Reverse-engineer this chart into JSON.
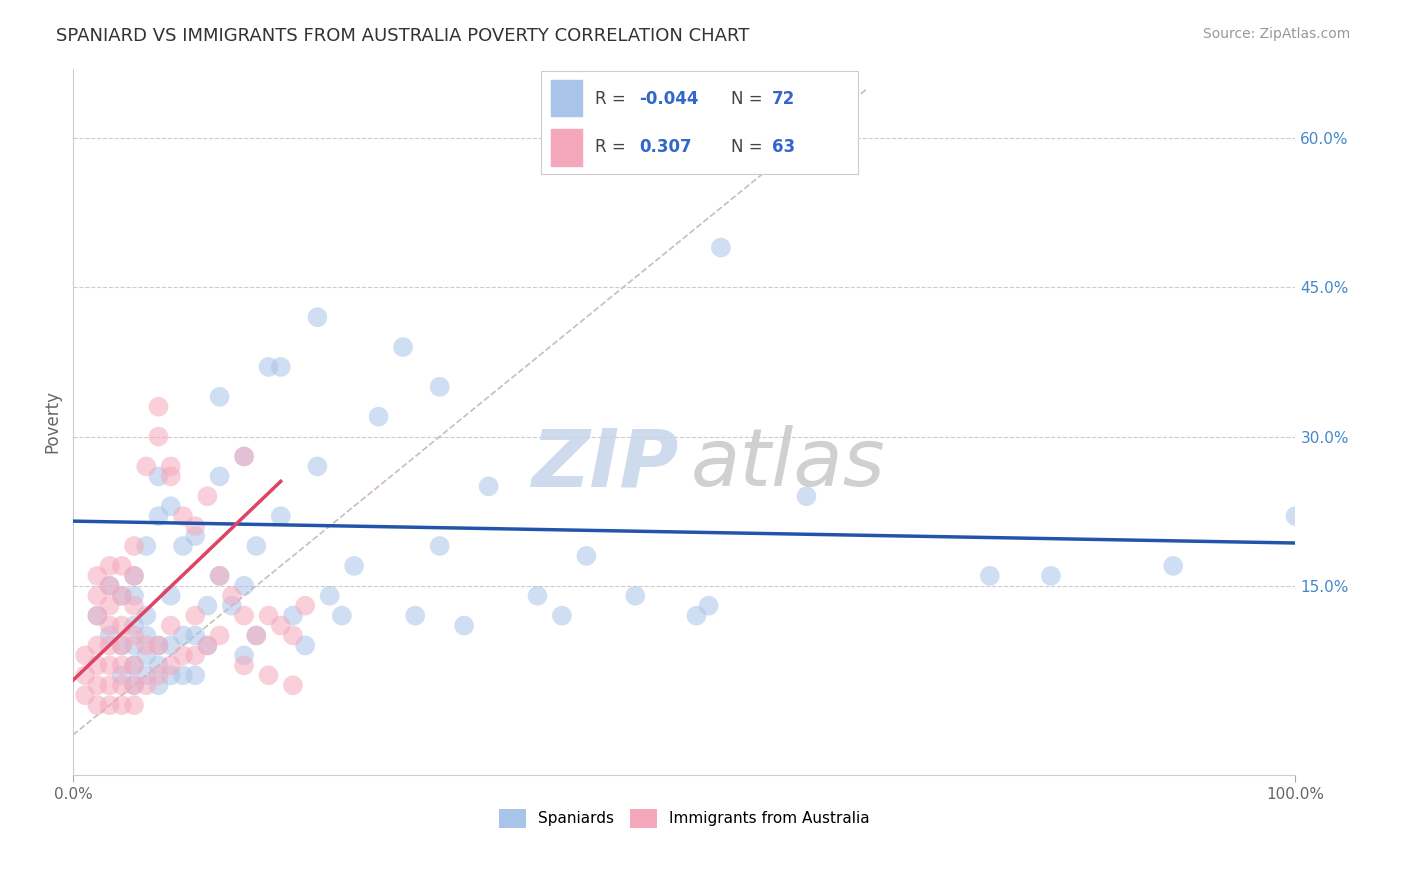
{
  "title": "SPANIARD VS IMMIGRANTS FROM AUSTRALIA POVERTY CORRELATION CHART",
  "source": "Source: ZipAtlas.com",
  "ylabel": "Poverty",
  "xlim": [
    0.0,
    1.0
  ],
  "ylim": [
    -0.04,
    0.67
  ],
  "ytick_vals": [
    0.15,
    0.3,
    0.45,
    0.6
  ],
  "ytick_labels": [
    "15.0%",
    "30.0%",
    "45.0%",
    "60.0%"
  ],
  "blue_color": "#a8c4e8",
  "pink_color": "#f5a8bc",
  "blue_line_color": "#2255aa",
  "pink_line_color": "#dd4466",
  "diag_line_color": "#ccbbbb",
  "watermark_zip_color": "#c5d5ea",
  "watermark_atlas_color": "#c8c8c8",
  "spaniards_x": [
    0.02,
    0.03,
    0.03,
    0.04,
    0.04,
    0.04,
    0.05,
    0.05,
    0.05,
    0.05,
    0.05,
    0.05,
    0.06,
    0.06,
    0.06,
    0.06,
    0.06,
    0.07,
    0.07,
    0.07,
    0.07,
    0.07,
    0.08,
    0.08,
    0.08,
    0.08,
    0.09,
    0.09,
    0.09,
    0.1,
    0.1,
    0.1,
    0.11,
    0.11,
    0.12,
    0.12,
    0.13,
    0.14,
    0.14,
    0.14,
    0.15,
    0.15,
    0.17,
    0.17,
    0.18,
    0.19,
    0.2,
    0.21,
    0.22,
    0.23,
    0.25,
    0.27,
    0.28,
    0.3,
    0.3,
    0.32,
    0.34,
    0.38,
    0.4,
    0.42,
    0.46,
    0.51,
    0.52,
    0.53,
    0.6,
    0.75,
    0.8,
    0.9,
    1.0,
    0.12,
    0.16,
    0.2
  ],
  "spaniards_y": [
    0.12,
    0.1,
    0.15,
    0.06,
    0.09,
    0.14,
    0.05,
    0.07,
    0.09,
    0.11,
    0.14,
    0.16,
    0.06,
    0.08,
    0.1,
    0.12,
    0.19,
    0.05,
    0.07,
    0.09,
    0.22,
    0.26,
    0.06,
    0.09,
    0.14,
    0.23,
    0.06,
    0.1,
    0.19,
    0.06,
    0.1,
    0.2,
    0.09,
    0.13,
    0.16,
    0.34,
    0.13,
    0.08,
    0.15,
    0.28,
    0.1,
    0.19,
    0.22,
    0.37,
    0.12,
    0.09,
    0.27,
    0.14,
    0.12,
    0.17,
    0.32,
    0.39,
    0.12,
    0.35,
    0.19,
    0.11,
    0.25,
    0.14,
    0.12,
    0.18,
    0.14,
    0.12,
    0.13,
    0.49,
    0.24,
    0.16,
    0.16,
    0.17,
    0.22,
    0.26,
    0.37,
    0.42
  ],
  "immigrants_x": [
    0.01,
    0.01,
    0.01,
    0.02,
    0.02,
    0.02,
    0.02,
    0.02,
    0.02,
    0.02,
    0.03,
    0.03,
    0.03,
    0.03,
    0.03,
    0.03,
    0.03,
    0.03,
    0.04,
    0.04,
    0.04,
    0.04,
    0.04,
    0.04,
    0.04,
    0.05,
    0.05,
    0.05,
    0.05,
    0.05,
    0.05,
    0.05,
    0.06,
    0.06,
    0.06,
    0.07,
    0.07,
    0.07,
    0.08,
    0.08,
    0.08,
    0.09,
    0.09,
    0.1,
    0.1,
    0.11,
    0.11,
    0.12,
    0.13,
    0.14,
    0.14,
    0.15,
    0.16,
    0.17,
    0.18,
    0.19,
    0.07,
    0.08,
    0.1,
    0.12,
    0.14,
    0.16,
    0.18
  ],
  "immigrants_y": [
    0.04,
    0.06,
    0.08,
    0.03,
    0.05,
    0.07,
    0.09,
    0.12,
    0.14,
    0.16,
    0.03,
    0.05,
    0.07,
    0.09,
    0.11,
    0.13,
    0.15,
    0.17,
    0.03,
    0.05,
    0.07,
    0.09,
    0.11,
    0.14,
    0.17,
    0.03,
    0.05,
    0.07,
    0.1,
    0.13,
    0.16,
    0.19,
    0.05,
    0.09,
    0.27,
    0.06,
    0.09,
    0.3,
    0.07,
    0.11,
    0.26,
    0.08,
    0.22,
    0.08,
    0.12,
    0.09,
    0.24,
    0.1,
    0.14,
    0.07,
    0.28,
    0.1,
    0.12,
    0.11,
    0.1,
    0.13,
    0.33,
    0.27,
    0.21,
    0.16,
    0.12,
    0.06,
    0.05
  ],
  "blue_trend_x": [
    0.0,
    1.0
  ],
  "blue_trend_y": [
    0.215,
    0.193
  ],
  "pink_trend_x": [
    0.0,
    0.17
  ],
  "pink_trend_y": [
    0.055,
    0.255
  ],
  "diag_line_x": [
    0.0,
    0.65
  ],
  "diag_line_y": [
    0.0,
    0.65
  ]
}
